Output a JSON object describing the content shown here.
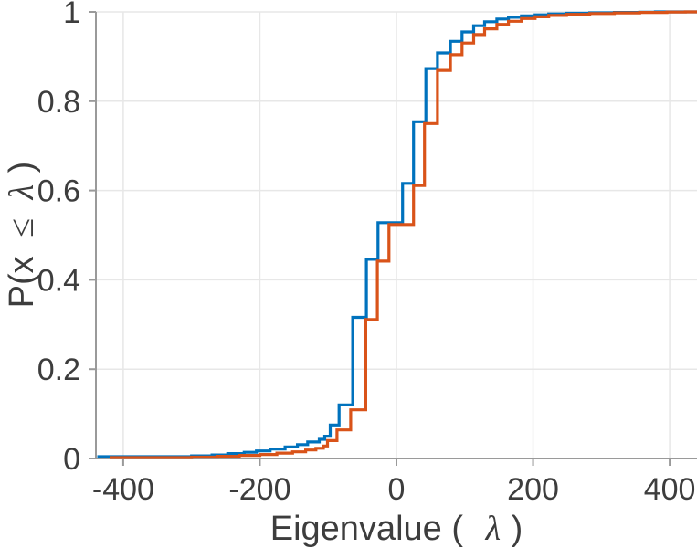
{
  "chart_data": {
    "type": "line",
    "subtype": "step-ecdf",
    "title": "",
    "xlabel": {
      "prefix": "Eigenvalue (",
      "symbol": "λ",
      "suffix": ")"
    },
    "ylabel": {
      "prefix": "P(x",
      "leq": "≤",
      "symbol": "λ",
      "suffix": ")"
    },
    "xlim": [
      -440,
      440
    ],
    "ylim": [
      0,
      1
    ],
    "grid": true,
    "legend": "none",
    "xticks": [
      {
        "value": -400,
        "label": "-400"
      },
      {
        "value": -200,
        "label": "-200"
      },
      {
        "value": 0,
        "label": "0"
      },
      {
        "value": 200,
        "label": "200"
      },
      {
        "value": 400,
        "label": "400"
      }
    ],
    "yticks": [
      {
        "value": 0,
        "label": "0"
      },
      {
        "value": 0.2,
        "label": "0.2"
      },
      {
        "value": 0.4,
        "label": "0.4"
      },
      {
        "value": 0.6,
        "label": "0.6"
      },
      {
        "value": 0.8,
        "label": "0.8"
      },
      {
        "value": 1,
        "label": "1"
      }
    ],
    "colors": {
      "background": "#ffffff",
      "grid": "#e7e7e7",
      "axis": "#9a9a9a",
      "tick_label": "#3d3d3d",
      "axis_label": "#3d3d3d",
      "series_blue": "#0072BD",
      "series_orange": "#D95319"
    },
    "series": [
      {
        "name": "ecdf-blue",
        "color": "#0072BD",
        "line_width": 3.2,
        "points": [
          [
            -438,
            0.004
          ],
          [
            -300,
            0.006
          ],
          [
            -270,
            0.008
          ],
          [
            -247,
            0.011
          ],
          [
            -223,
            0.014
          ],
          [
            -205,
            0.017
          ],
          [
            -185,
            0.021
          ],
          [
            -163,
            0.026
          ],
          [
            -145,
            0.031
          ],
          [
            -130,
            0.037
          ],
          [
            -113,
            0.043
          ],
          [
            -105,
            0.05
          ],
          [
            -97,
            0.075
          ],
          [
            -84,
            0.12
          ],
          [
            -64,
            0.316
          ],
          [
            -44,
            0.446
          ],
          [
            -27,
            0.528
          ],
          [
            9,
            0.616
          ],
          [
            25,
            0.754
          ],
          [
            43,
            0.873
          ],
          [
            60,
            0.908
          ],
          [
            79,
            0.934
          ],
          [
            96,
            0.955
          ],
          [
            113,
            0.969
          ],
          [
            129,
            0.978
          ],
          [
            147,
            0.984
          ],
          [
            164,
            0.988
          ],
          [
            183,
            0.991
          ],
          [
            203,
            0.9935
          ],
          [
            223,
            0.9955
          ],
          [
            249,
            0.997
          ],
          [
            283,
            0.998
          ],
          [
            319,
            0.9988
          ],
          [
            356,
            0.9994
          ],
          [
            379,
            1.0
          ]
        ]
      },
      {
        "name": "ecdf-orange",
        "color": "#D95319",
        "line_width": 3.2,
        "points": [
          [
            -420,
            0.002
          ],
          [
            -300,
            0.003
          ],
          [
            -262,
            0.005
          ],
          [
            -230,
            0.007
          ],
          [
            -200,
            0.009
          ],
          [
            -175,
            0.012
          ],
          [
            -152,
            0.015
          ],
          [
            -133,
            0.019
          ],
          [
            -118,
            0.023
          ],
          [
            -107,
            0.028
          ],
          [
            -101,
            0.04
          ],
          [
            -87,
            0.064
          ],
          [
            -67,
            0.109
          ],
          [
            -45,
            0.311
          ],
          [
            -28,
            0.442
          ],
          [
            -11,
            0.524
          ],
          [
            25,
            0.611
          ],
          [
            41,
            0.75
          ],
          [
            60,
            0.869
          ],
          [
            79,
            0.904
          ],
          [
            96,
            0.93
          ],
          [
            113,
            0.949
          ],
          [
            129,
            0.962
          ],
          [
            147,
            0.972
          ],
          [
            164,
            0.979
          ],
          [
            183,
            0.985
          ],
          [
            203,
            0.989
          ],
          [
            223,
            0.992
          ],
          [
            249,
            0.9945
          ],
          [
            283,
            0.9963
          ],
          [
            319,
            0.9977
          ],
          [
            356,
            0.9988
          ],
          [
            396,
            0.9996
          ],
          [
            423,
            1.0
          ]
        ]
      }
    ]
  }
}
